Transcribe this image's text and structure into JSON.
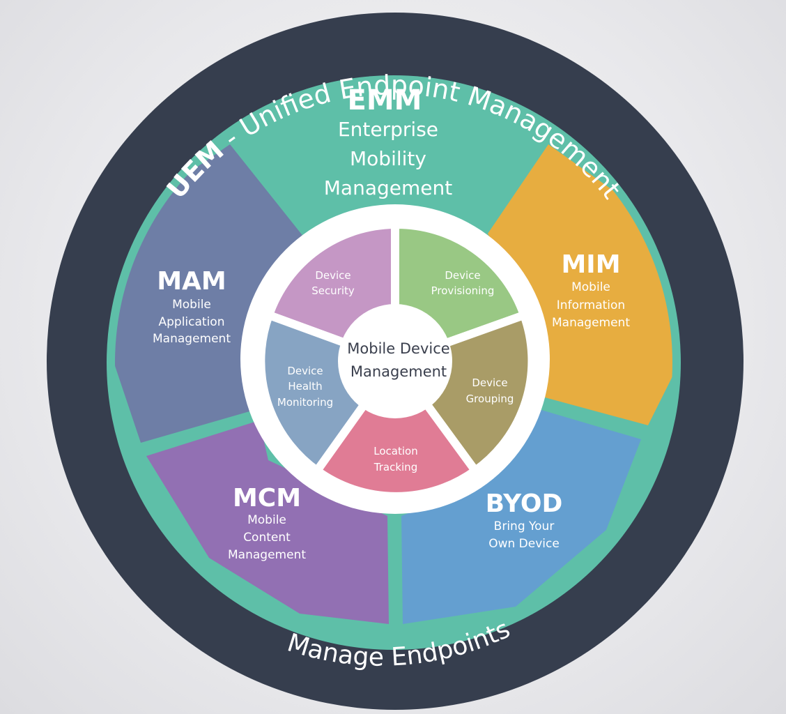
{
  "outer_ring": {
    "top_prefix": "UEM",
    "top_rest": " - Unified Endpoint Management",
    "bottom": "Manage Endpoints"
  },
  "emm": {
    "abbr": "EMM",
    "lines": [
      "Enterprise",
      "Mobility",
      "Management"
    ]
  },
  "segments": {
    "mam": {
      "abbr": "MAM",
      "lines": [
        "Mobile",
        "Application",
        "Management"
      ],
      "color": "#6e7ea6"
    },
    "mim": {
      "abbr": "MIM",
      "lines": [
        "Mobile",
        "Information",
        "Management"
      ],
      "color": "#e7ad40"
    },
    "mcm": {
      "abbr": "MCM",
      "lines": [
        "Mobile",
        "Content",
        "Management"
      ],
      "color": "#9270b3"
    },
    "byod": {
      "abbr": "BYOD",
      "lines": [
        "Bring Your",
        "Own Device"
      ],
      "color": "#649fd0"
    }
  },
  "inner": {
    "security": {
      "lines": [
        "Device",
        "Security"
      ],
      "color": "#c597c5"
    },
    "provisioning": {
      "lines": [
        "Device",
        "Provisioning"
      ],
      "color": "#99c884"
    },
    "grouping": {
      "lines": [
        "Device",
        "Grouping"
      ],
      "color": "#a99c67"
    },
    "location": {
      "lines": [
        "Location",
        "Tracking"
      ],
      "color": "#e07c95"
    },
    "health": {
      "lines": [
        "Device",
        "Health",
        "Monitoring"
      ],
      "color": "#87a4c3"
    }
  },
  "center": {
    "lines": [
      "Mobile Device",
      "Management"
    ]
  },
  "colors": {
    "outer_ring": "#363e4e",
    "emm_teal": "#5ebfa8",
    "white": "#ffffff"
  }
}
